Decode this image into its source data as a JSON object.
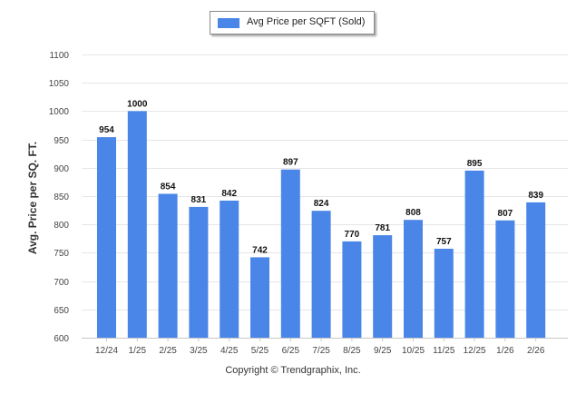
{
  "legend": {
    "label": "Avg Price per SQFT (Sold)",
    "color": "#4a86e8"
  },
  "copyright": "Copyright © Trendgraphix, Inc.",
  "chart_data": {
    "type": "bar",
    "title": "",
    "xlabel": "",
    "ylabel": "Avg. Price per SQ. FT.",
    "ylim": [
      600,
      1100
    ],
    "yticks": [
      600,
      650,
      700,
      750,
      800,
      850,
      900,
      950,
      1000,
      1050,
      1100
    ],
    "grid": true,
    "legend_position": "top-center",
    "series": [
      {
        "name": "Avg Price per SQFT (Sold)",
        "color": "#4a86e8",
        "values": [
          954,
          1000,
          854,
          831,
          842,
          742,
          897,
          824,
          770,
          781,
          808,
          757,
          895,
          807,
          839
        ]
      }
    ],
    "categories": [
      "12/24",
      "1/25",
      "2/25",
      "3/25",
      "4/25",
      "5/25",
      "6/25",
      "7/25",
      "8/25",
      "9/25",
      "10/25",
      "11/25",
      "12/25",
      "1/26",
      "2/26"
    ]
  }
}
